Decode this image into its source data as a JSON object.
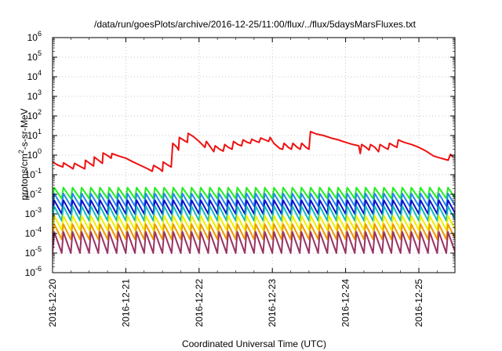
{
  "chart_data": {
    "type": "line",
    "title": "/data/run/goesPlots/archive/2016-12-25/11:00/flux/../flux/5daysMarsFluxes.txt",
    "xlabel": "Coordinated Universal Time (UTC)",
    "ylabel": {
      "base": "protons/cm",
      "sup": "2",
      "rest": "-s-sr-MeV"
    },
    "ylim": [
      1e-06,
      1000000.0
    ],
    "yscale": "log",
    "xlim": [
      "2016-12-20",
      "2016-12-25 11:00"
    ],
    "grid": true,
    "y_ticks": [
      {
        "exp": -6,
        "label_base": "10",
        "label_exp": "-6"
      },
      {
        "exp": -5,
        "label_base": "10",
        "label_exp": "-5"
      },
      {
        "exp": -4,
        "label_base": "10",
        "label_exp": "-4"
      },
      {
        "exp": -3,
        "label_base": "10",
        "label_exp": "-3"
      },
      {
        "exp": -2,
        "label_base": "10",
        "label_exp": "-2"
      },
      {
        "exp": -1,
        "label_base": "10",
        "label_exp": "-1"
      },
      {
        "exp": 0,
        "label_base": "10",
        "label_exp": "0"
      },
      {
        "exp": 1,
        "label_base": "10",
        "label_exp": "1"
      },
      {
        "exp": 2,
        "label_base": "10",
        "label_exp": "2"
      },
      {
        "exp": 3,
        "label_base": "10",
        "label_exp": "3"
      },
      {
        "exp": 4,
        "label_base": "10",
        "label_exp": "4"
      },
      {
        "exp": 5,
        "label_base": "10",
        "label_exp": "5"
      },
      {
        "exp": 6,
        "label_base": "10",
        "label_exp": "6"
      }
    ],
    "x_ticks": [
      "2016-12-20",
      "2016-12-21",
      "2016-12-22",
      "2016-12-23",
      "2016-12-24",
      "2016-12-25"
    ],
    "series": [
      {
        "color": "#ee1111",
        "kind": "steps",
        "points": [
          [
            0.0,
            0.45
          ],
          [
            0.08,
            0.3
          ],
          [
            0.14,
            0.25
          ],
          [
            0.15,
            0.4
          ],
          [
            0.22,
            0.28
          ],
          [
            0.28,
            0.2
          ],
          [
            0.3,
            0.38
          ],
          [
            0.38,
            0.26
          ],
          [
            0.44,
            0.2
          ],
          [
            0.45,
            0.55
          ],
          [
            0.52,
            0.35
          ],
          [
            0.56,
            0.28
          ],
          [
            0.57,
            0.8
          ],
          [
            0.64,
            0.5
          ],
          [
            0.68,
            0.38
          ],
          [
            0.69,
            1.3
          ],
          [
            0.76,
            0.9
          ],
          [
            0.8,
            0.7
          ],
          [
            0.81,
            1.2
          ],
          [
            0.9,
            0.9
          ],
          [
            1.0,
            0.7
          ],
          [
            1.1,
            0.45
          ],
          [
            1.2,
            0.3
          ],
          [
            1.3,
            0.2
          ],
          [
            1.36,
            0.15
          ],
          [
            1.38,
            0.3
          ],
          [
            1.46,
            0.2
          ],
          [
            1.5,
            0.15
          ],
          [
            1.51,
            0.45
          ],
          [
            1.58,
            0.3
          ],
          [
            1.62,
            0.25
          ],
          [
            1.64,
            4.0
          ],
          [
            1.7,
            2.5
          ],
          [
            1.72,
            1.8
          ],
          [
            1.73,
            8.0
          ],
          [
            1.8,
            5.5
          ],
          [
            1.84,
            4.5
          ],
          [
            1.85,
            13.0
          ],
          [
            1.92,
            9.0
          ],
          [
            2.0,
            5.0
          ],
          [
            2.06,
            3.0
          ],
          [
            2.08,
            2.5
          ],
          [
            2.1,
            5.0
          ],
          [
            2.16,
            2.5
          ],
          [
            2.2,
            1.5
          ],
          [
            2.22,
            3.0
          ],
          [
            2.28,
            2.0
          ],
          [
            2.33,
            1.6
          ],
          [
            2.35,
            3.5
          ],
          [
            2.4,
            2.5
          ],
          [
            2.45,
            2.0
          ],
          [
            2.47,
            5.0
          ],
          [
            2.53,
            3.5
          ],
          [
            2.58,
            3.0
          ],
          [
            2.6,
            6.0
          ],
          [
            2.66,
            4.5
          ],
          [
            2.7,
            4.0
          ],
          [
            2.72,
            6.5
          ],
          [
            2.78,
            5.0
          ],
          [
            2.82,
            4.5
          ],
          [
            2.84,
            7.5
          ],
          [
            2.9,
            6.0
          ],
          [
            2.95,
            5.0
          ],
          [
            2.97,
            8.0
          ],
          [
            3.02,
            4.0
          ],
          [
            3.1,
            2.2
          ],
          [
            3.14,
            2.0
          ],
          [
            3.16,
            4.0
          ],
          [
            3.22,
            2.5
          ],
          [
            3.26,
            2.0
          ],
          [
            3.28,
            4.0
          ],
          [
            3.34,
            2.5
          ],
          [
            3.38,
            2.0
          ],
          [
            3.4,
            4.0
          ],
          [
            3.46,
            2.5
          ],
          [
            3.5,
            2.0
          ],
          [
            3.52,
            16.0
          ],
          [
            3.6,
            12.0
          ],
          [
            3.7,
            10.0
          ],
          [
            3.8,
            7.5
          ],
          [
            3.9,
            6.0
          ],
          [
            4.0,
            4.5
          ],
          [
            4.1,
            3.5
          ],
          [
            4.18,
            3.0
          ],
          [
            4.2,
            1.2
          ],
          [
            4.22,
            3.5
          ],
          [
            4.28,
            2.5
          ],
          [
            4.32,
            1.8
          ],
          [
            4.34,
            3.5
          ],
          [
            4.4,
            2.5
          ],
          [
            4.45,
            1.5
          ],
          [
            4.47,
            3.5
          ],
          [
            4.53,
            2.5
          ],
          [
            4.58,
            2.0
          ],
          [
            4.6,
            4.0
          ],
          [
            4.66,
            3.0
          ],
          [
            4.7,
            2.5
          ],
          [
            4.72,
            6.0
          ],
          [
            4.8,
            4.5
          ],
          [
            4.9,
            3.5
          ],
          [
            5.0,
            2.5
          ],
          [
            5.1,
            1.6
          ],
          [
            5.2,
            0.9
          ],
          [
            5.3,
            0.7
          ],
          [
            5.4,
            0.55
          ],
          [
            5.43,
            1.1
          ],
          [
            5.46,
            0.8
          ]
        ]
      },
      {
        "color": "#22ee22",
        "kind": "sawtooth",
        "period": 0.125,
        "low": 0.006,
        "high": 0.022
      },
      {
        "color": "#2288ee",
        "kind": "sawtooth",
        "period": 0.125,
        "low": 0.0025,
        "high": 0.011
      },
      {
        "color": "#1111cc",
        "kind": "sawtooth",
        "period": 0.125,
        "low": 0.001,
        "high": 0.005
      },
      {
        "color": "#11bbbb",
        "kind": "sawtooth",
        "period": 0.125,
        "low": 0.00045,
        "high": 0.0025
      },
      {
        "color": "#eeee00",
        "kind": "sawtooth",
        "period": 0.125,
        "low": 0.00015,
        "high": 0.0008
      },
      {
        "color": "#ee9900",
        "kind": "sawtooth",
        "period": 0.125,
        "low": 5e-05,
        "high": 0.0003
      },
      {
        "color": "#993366",
        "kind": "sawtooth",
        "period": 0.125,
        "low": 1e-05,
        "high": 0.00012
      }
    ]
  }
}
